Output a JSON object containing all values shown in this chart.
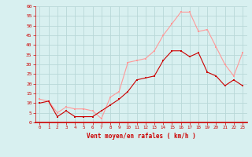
{
  "hours": [
    0,
    1,
    2,
    3,
    4,
    5,
    6,
    7,
    8,
    9,
    10,
    11,
    12,
    13,
    14,
    15,
    16,
    17,
    18,
    19,
    20,
    21,
    22,
    23
  ],
  "wind_mean": [
    10,
    11,
    3,
    6,
    3,
    3,
    3,
    6,
    9,
    12,
    16,
    22,
    23,
    24,
    32,
    37,
    37,
    34,
    36,
    26,
    24,
    19,
    22,
    19
  ],
  "wind_gust": [
    12,
    11,
    5,
    8,
    7,
    7,
    6,
    2,
    13,
    16,
    31,
    32,
    33,
    37,
    45,
    51,
    57,
    57,
    47,
    48,
    39,
    30,
    24,
    36
  ],
  "bg_color": "#d8f0f0",
  "grid_color": "#b8d8d8",
  "mean_color": "#cc0000",
  "gust_color": "#ff9999",
  "axis_color": "#cc0000",
  "xlabel": "Vent moyen/en rafales ( km/h )",
  "ylim": [
    0,
    60
  ],
  "yticks": [
    0,
    5,
    10,
    15,
    20,
    25,
    30,
    35,
    40,
    45,
    50,
    55,
    60
  ]
}
